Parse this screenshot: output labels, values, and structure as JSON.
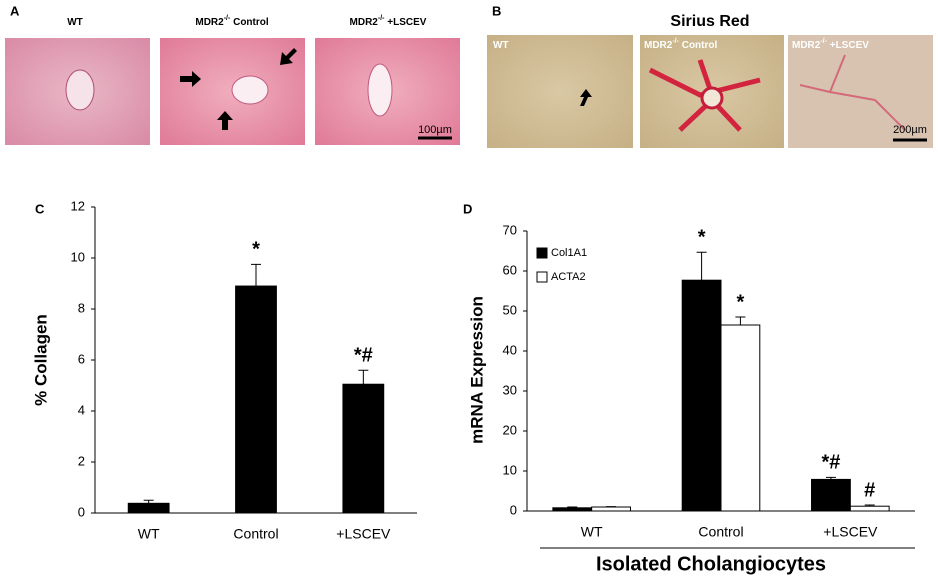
{
  "image_panels": [
    {
      "label": "A",
      "scale_bar": "100µm",
      "images": [
        {
          "caption": {
            "text": "WT"
          }
        },
        {
          "caption": {
            "text": "MDR2",
            "sup": "-/-",
            "rest": " Control"
          }
        },
        {
          "caption": {
            "text": "MDR2",
            "sup": "-/-",
            "rest": " +LSCEV"
          }
        }
      ]
    },
    {
      "label": "B",
      "title": "Sirius Red",
      "scale_bar": "200µm",
      "images": [
        {
          "caption": {
            "text": "WT"
          }
        },
        {
          "caption": {
            "text": "MDR2",
            "sup": "-/-",
            "rest": " Control"
          }
        },
        {
          "caption": {
            "text": "MDR2",
            "sup": "-/-",
            "rest": " +LSCEV"
          }
        }
      ]
    }
  ],
  "chart_data": [
    {
      "type": "bar",
      "panel_label": "C",
      "y_label": "% Collagen",
      "categories": [
        "WT",
        "Control",
        "+LSCEV"
      ],
      "values": [
        0.38,
        8.9,
        5.05
      ],
      "errors": [
        0.12,
        0.85,
        0.55
      ],
      "annotations": [
        null,
        "*",
        "*#"
      ],
      "color": "#000000",
      "ylim": [
        0,
        12
      ],
      "yticks": [
        0,
        2,
        4,
        6,
        8,
        10,
        12
      ]
    },
    {
      "type": "grouped_bar",
      "panel_label": "D",
      "y_label": "mRNA Expression",
      "x_label": "Isolated Cholangiocytes",
      "categories": [
        "WT",
        "Control",
        "+LSCEV"
      ],
      "series": [
        {
          "name": "Col1A1",
          "color": "#000000",
          "values": [
            0.8,
            57.7,
            7.9
          ],
          "errors": [
            0.2,
            7.0,
            0.5
          ],
          "annotations": [
            null,
            "*",
            "*#"
          ]
        },
        {
          "name": "ACTA2",
          "color": "#ffffff",
          "values": [
            1.0,
            46.5,
            1.2
          ],
          "errors": [
            0.1,
            2.0,
            0.3
          ],
          "annotations": [
            null,
            "*",
            "#"
          ]
        }
      ],
      "ylim": [
        0,
        70
      ],
      "yticks": [
        0,
        10,
        20,
        30,
        40,
        50,
        60,
        70
      ],
      "legend": "upper-left"
    }
  ]
}
